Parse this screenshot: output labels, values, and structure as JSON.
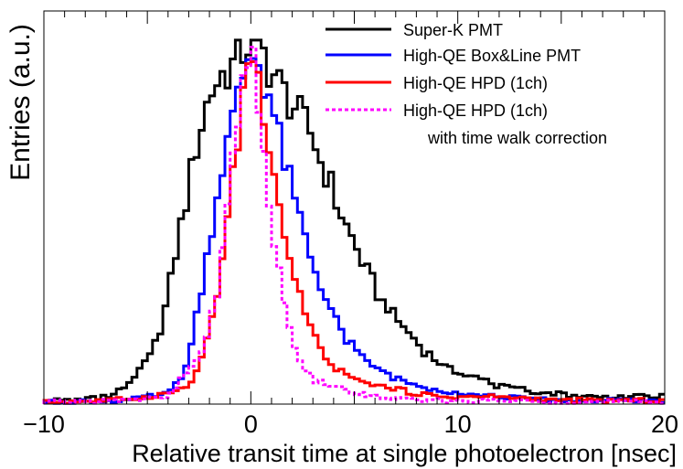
{
  "chart_data": {
    "type": "line",
    "title": "",
    "xlabel": "Relative transit time at single photoelectron [nsec]",
    "ylabel": "Entries (a.u.)",
    "xlim": [
      -10,
      20
    ],
    "ylim": [
      0,
      1.08
    ],
    "xticks": [
      -10,
      0,
      10,
      20
    ],
    "xtick_labels": [
      "−10",
      "0",
      "10",
      "20"
    ],
    "bin_width": 0.25,
    "legend_position": "top-right",
    "series": [
      {
        "name": "Super-K PMT",
        "color": "#000000",
        "style": "solid",
        "points": [
          [
            -10,
            0.01
          ],
          [
            -8.5,
            0.01
          ],
          [
            -7,
            0.02
          ],
          [
            -6.5,
            0.03
          ],
          [
            -6,
            0.05
          ],
          [
            -5.5,
            0.08
          ],
          [
            -5,
            0.12
          ],
          [
            -4.5,
            0.18
          ],
          [
            -4,
            0.3
          ],
          [
            -3.5,
            0.45
          ],
          [
            -3,
            0.6
          ],
          [
            -2.5,
            0.75
          ],
          [
            -2,
            0.85
          ],
          [
            -1.5,
            0.9
          ],
          [
            -1,
            0.92
          ],
          [
            -0.5,
            0.97
          ],
          [
            0,
            1.0
          ],
          [
            0.5,
            0.97
          ],
          [
            1,
            0.92
          ],
          [
            1.5,
            0.87
          ],
          [
            2,
            0.83
          ],
          [
            2.5,
            0.78
          ],
          [
            3,
            0.73
          ],
          [
            3.5,
            0.65
          ],
          [
            4,
            0.58
          ],
          [
            4.5,
            0.5
          ],
          [
            5,
            0.44
          ],
          [
            5.5,
            0.38
          ],
          [
            6,
            0.32
          ],
          [
            6.5,
            0.27
          ],
          [
            7,
            0.24
          ],
          [
            7.5,
            0.2
          ],
          [
            8,
            0.17
          ],
          [
            8.5,
            0.14
          ],
          [
            9,
            0.12
          ],
          [
            10,
            0.09
          ],
          [
            11,
            0.07
          ],
          [
            12,
            0.05
          ],
          [
            13,
            0.04
          ],
          [
            14,
            0.03
          ],
          [
            15,
            0.03
          ],
          [
            16,
            0.02
          ],
          [
            18,
            0.02
          ],
          [
            20,
            0.02
          ]
        ]
      },
      {
        "name": "High-QE Box&Line PMT",
        "color": "#0000ff",
        "style": "solid",
        "points": [
          [
            -10,
            0.005
          ],
          [
            -6,
            0.01
          ],
          [
            -4,
            0.03
          ],
          [
            -3.5,
            0.06
          ],
          [
            -3,
            0.12
          ],
          [
            -2.5,
            0.28
          ],
          [
            -2,
            0.45
          ],
          [
            -1.5,
            0.62
          ],
          [
            -1,
            0.75
          ],
          [
            -0.5,
            0.87
          ],
          [
            0,
            0.98
          ],
          [
            0.5,
            0.92
          ],
          [
            1,
            0.82
          ],
          [
            1.5,
            0.7
          ],
          [
            2,
            0.58
          ],
          [
            2.5,
            0.48
          ],
          [
            3,
            0.38
          ],
          [
            3.5,
            0.31
          ],
          [
            4,
            0.24
          ],
          [
            4.5,
            0.19
          ],
          [
            5,
            0.15
          ],
          [
            5.5,
            0.12
          ],
          [
            6,
            0.1
          ],
          [
            7,
            0.07
          ],
          [
            8,
            0.05
          ],
          [
            9,
            0.04
          ],
          [
            10,
            0.03
          ],
          [
            12,
            0.02
          ],
          [
            15,
            0.01
          ],
          [
            20,
            0.01
          ]
        ]
      },
      {
        "name": "High-QE HPD (1ch)",
        "color": "#ff0000",
        "style": "solid",
        "points": [
          [
            -10,
            0.005
          ],
          [
            -7,
            0.01
          ],
          [
            -5,
            0.02
          ],
          [
            -4,
            0.03
          ],
          [
            -3,
            0.05
          ],
          [
            -2.5,
            0.1
          ],
          [
            -2,
            0.2
          ],
          [
            -1.5,
            0.35
          ],
          [
            -1,
            0.55
          ],
          [
            -0.5,
            0.8
          ],
          [
            0,
            1.0
          ],
          [
            0.5,
            0.85
          ],
          [
            1,
            0.7
          ],
          [
            1.5,
            0.5
          ],
          [
            2,
            0.37
          ],
          [
            2.5,
            0.28
          ],
          [
            3,
            0.2
          ],
          [
            3.5,
            0.13
          ],
          [
            4,
            0.1
          ],
          [
            5,
            0.07
          ],
          [
            6,
            0.05
          ],
          [
            7,
            0.04
          ],
          [
            8,
            0.03
          ],
          [
            9,
            0.02
          ],
          [
            12,
            0.02
          ],
          [
            15,
            0.01
          ],
          [
            20,
            0.01
          ]
        ]
      },
      {
        "name": "High-QE HPD (1ch)",
        "sublabel": "with time walk correction",
        "color": "#ff00ff",
        "style": "dashed",
        "points": [
          [
            -10,
            0.005
          ],
          [
            -6,
            0.01
          ],
          [
            -4,
            0.02
          ],
          [
            -3.5,
            0.05
          ],
          [
            -3,
            0.1
          ],
          [
            -2.5,
            0.13
          ],
          [
            -2,
            0.2
          ],
          [
            -1.5,
            0.35
          ],
          [
            -1,
            0.6
          ],
          [
            -0.5,
            0.85
          ],
          [
            0,
            1.0
          ],
          [
            0.5,
            0.75
          ],
          [
            1,
            0.5
          ],
          [
            1.5,
            0.3
          ],
          [
            2,
            0.18
          ],
          [
            2.5,
            0.1
          ],
          [
            3,
            0.07
          ],
          [
            4,
            0.05
          ],
          [
            5,
            0.03
          ],
          [
            6,
            0.02
          ],
          [
            8,
            0.01
          ],
          [
            20,
            0.005
          ]
        ]
      }
    ]
  }
}
